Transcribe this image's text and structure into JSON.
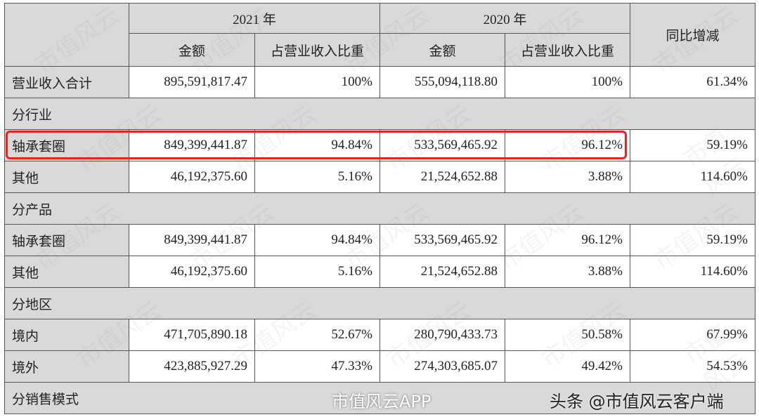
{
  "table": {
    "header": {
      "years": [
        "2021 年",
        "2020 年"
      ],
      "columns": [
        "金额",
        "占营业收入比重",
        "金额",
        "占营业收入比重"
      ],
      "change": "同比增减"
    },
    "rows": [
      [
        "营业收入合计",
        "895,591,817.47",
        "100%",
        "555,094,118.80",
        "100%",
        "61.34%"
      ],
      [
        "分行业"
      ],
      [
        "轴承套圈",
        "849,399,441.87",
        "94.84%",
        "533,569,465.92",
        "96.12%",
        "59.19%"
      ],
      [
        "其他",
        "46,192,375.60",
        "5.16%",
        "21,524,652.88",
        "3.88%",
        "114.60%"
      ],
      [
        "分产品"
      ],
      [
        "轴承套圈",
        "849,399,441.87",
        "94.84%",
        "533,569,465.92",
        "96.12%",
        "59.19%"
      ],
      [
        "其他",
        "46,192,375.60",
        "5.16%",
        "21,524,652.88",
        "3.88%",
        "114.60%"
      ],
      [
        "分地区"
      ],
      [
        "境内",
        "471,705,890.18",
        "52.67%",
        "280,790,433.73",
        "50.58%",
        "67.99%"
      ],
      [
        "境外",
        "423,885,927.29",
        "47.33%",
        "274,303,685.07",
        "49.42%",
        "54.53%"
      ],
      [
        "分销售模式"
      ]
    ]
  },
  "watermark": "市值风云",
  "footer": {
    "app": "市值风云APP",
    "source": "头条 @市值风云客户端"
  }
}
